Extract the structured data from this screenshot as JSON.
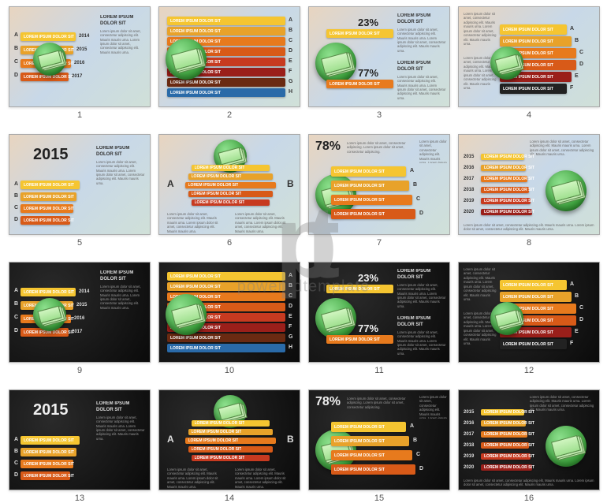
{
  "watermark": {
    "logo": "pt",
    "subtitle": "poweredtemplate"
  },
  "lorem_title": "LOREM IPSUM DOLOR SIT",
  "lorem_short": "Lorem ipsum dolor sit amet, consectetur adipiscing.",
  "lorem_body": "Lorem ipsum dolor sit amet, consectetur adipiscing elit. Mauris mauris urna.",
  "slideNumbers": [
    "1",
    "2",
    "3",
    "4",
    "5",
    "6",
    "7",
    "8",
    "9",
    "10",
    "11",
    "12",
    "13",
    "14",
    "15",
    "16"
  ],
  "palette": {
    "yellow": "#f5c531",
    "gold": "#e8a22a",
    "orange": "#e77a1d",
    "dorange": "#d85a18",
    "red": "#c73a20",
    "dred": "#9a1f1a",
    "brown": "#6a2a12",
    "blue": "#2a6aa8",
    "black": "#222222",
    "white": "#ffffff"
  },
  "s1": {
    "letters": [
      "A",
      "B",
      "C",
      "D"
    ],
    "years": [
      "2014",
      "2015",
      "2016",
      "2017"
    ],
    "colors": [
      "#f5c531",
      "#e8a22a",
      "#e77a1d",
      "#d85a18"
    ]
  },
  "s2": {
    "letters": [
      "A",
      "B",
      "C",
      "D",
      "E",
      "F",
      "G",
      "H"
    ],
    "colors": [
      "#f5c531",
      "#e8a22a",
      "#e77a1d",
      "#d85a18",
      "#c73a20",
      "#9a1f1a",
      "#6a2a12",
      "#2a6aa8"
    ]
  },
  "s3": {
    "top_pct": "23%",
    "bot_pct": "77%",
    "colors": [
      "#f5c531",
      "#e77a1d"
    ]
  },
  "s4": {
    "letters": [
      "A",
      "B",
      "C",
      "D",
      "E",
      "F"
    ],
    "colors": [
      "#f5c531",
      "#e8a22a",
      "#e77a1d",
      "#d85a18",
      "#9a1f1a",
      "#222222"
    ]
  },
  "s5": {
    "big_year": "2015",
    "letters": [
      "A",
      "B",
      "C",
      "D"
    ],
    "colors": [
      "#f5c531",
      "#e8a22a",
      "#e77a1d",
      "#d85a18"
    ]
  },
  "s6": {
    "letters": [
      "A",
      "B"
    ],
    "colors": [
      "#f5c531",
      "#e8a22a",
      "#e77a1d",
      "#d85a18",
      "#c73a20"
    ]
  },
  "s7": {
    "pct": "78%",
    "letters": [
      "A",
      "B",
      "C",
      "D"
    ],
    "colors": [
      "#f5c531",
      "#e8a22a",
      "#e77a1d",
      "#d85a18"
    ]
  },
  "s8": {
    "years": [
      "2015",
      "2016",
      "2017",
      "2018",
      "2019",
      "2020"
    ],
    "colors": [
      "#f5c531",
      "#e8a22a",
      "#e77a1d",
      "#d85a18",
      "#c73a20",
      "#9a1f1a"
    ]
  }
}
